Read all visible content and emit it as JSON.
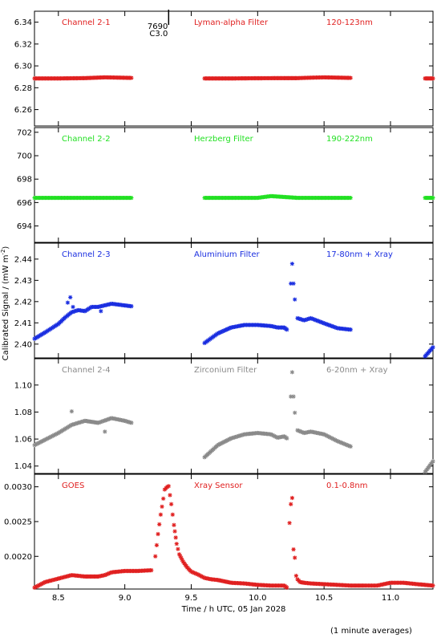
{
  "chart_data": {
    "type": "scatter",
    "x_axis": {
      "label": "Time / h UTC, 05 Jan 2028",
      "range": [
        8.32,
        11.32
      ],
      "ticks": [
        8.5,
        9.0,
        9.5,
        10.0,
        10.5,
        11.0
      ],
      "tick_labels": [
        "8.5",
        "9.0",
        "9.5",
        "10.0",
        "10.5",
        "11.0"
      ]
    },
    "shared_ylabel": "Calibrated Signal / (mW m",
    "shared_ylabel_sup": "-2",
    "shared_ylabel_end": ")",
    "footnote": "(1 minute averages)",
    "panels": [
      {
        "labels": [
          "Channel 2-1",
          "Lyman-alpha Filter",
          "120-123nm"
        ],
        "color": "#e02020",
        "ylim": [
          6.245,
          6.35
        ],
        "yticks": [
          6.26,
          6.28,
          6.3,
          6.32,
          6.34
        ],
        "ytick_labels": [
          "6.26",
          "6.28",
          "6.30",
          "6.32",
          "6.34"
        ],
        "annotation": {
          "x": 9.33,
          "lines": [
            "7690",
            "C3.0"
          ]
        },
        "segments": [
          {
            "x": [
              8.32,
              8.5,
              8.7,
              8.85,
              9.05
            ],
            "y": [
              6.2885,
              6.2885,
              6.2888,
              6.2895,
              6.289
            ]
          },
          {
            "x": [
              9.6,
              9.8,
              10.0,
              10.2,
              10.3,
              10.4,
              10.5,
              10.7
            ],
            "y": [
              6.2885,
              6.2885,
              6.2887,
              6.2888,
              6.2888,
              6.2892,
              6.2895,
              6.289
            ]
          },
          {
            "x": [
              11.26,
              11.32
            ],
            "y": [
              6.2885,
              6.2885
            ]
          }
        ]
      },
      {
        "labels": [
          "Channel 2-2",
          "Herzberg Filter",
          "190-222nm"
        ],
        "color": "#22e022",
        "ylim": [
          692.6,
          702.4
        ],
        "yticks": [
          694,
          696,
          698,
          700,
          702
        ],
        "ytick_labels": [
          "694",
          "696",
          "698",
          "700",
          "702"
        ],
        "segments": [
          {
            "x": [
              8.32,
              8.7,
              9.05
            ],
            "y": [
              696.4,
              696.4,
              696.4
            ]
          },
          {
            "x": [
              9.6,
              10.0,
              10.1,
              10.3,
              10.7
            ],
            "y": [
              696.4,
              696.4,
              696.55,
              696.4,
              696.4
            ]
          },
          {
            "x": [
              11.26,
              11.32
            ],
            "y": [
              696.4,
              696.4
            ]
          }
        ]
      },
      {
        "labels": [
          "Channel 2-3",
          "Aluminium Filter",
          "17-80nm + Xray"
        ],
        "color": "#1a2ee0",
        "ylim": [
          2.3935,
          2.4475
        ],
        "yticks": [
          2.4,
          2.41,
          2.42,
          2.43,
          2.44
        ],
        "ytick_labels": [
          "2.40",
          "2.41",
          "2.42",
          "2.43",
          "2.44"
        ],
        "legend_marker": {
          "x": 10.26,
          "y": 2.4378
        },
        "segments": [
          {
            "x": [
              8.32,
              8.4,
              8.5,
              8.55,
              8.6,
              8.65,
              8.7,
              8.75,
              8.8,
              8.9,
              9.0,
              9.05
            ],
            "y": [
              2.4025,
              2.4055,
              2.4095,
              2.4125,
              2.415,
              2.416,
              2.4155,
              2.4175,
              2.4175,
              2.419,
              2.4182,
              2.4178
            ]
          },
          {
            "x": [
              9.6,
              9.7,
              9.8,
              9.9,
              10.0,
              10.1,
              10.15,
              10.2,
              10.22
            ],
            "y": [
              2.4005,
              2.405,
              2.4078,
              2.409,
              2.409,
              2.4085,
              2.4078,
              2.4078,
              2.4068
            ]
          },
          {
            "x": [
              10.3,
              10.35,
              10.4,
              10.5,
              10.6,
              10.7
            ],
            "y": [
              2.4122,
              2.4112,
              2.4122,
              2.4098,
              2.4075,
              2.4068
            ]
          },
          {
            "x": [
              11.26,
              11.32
            ],
            "y": [
              2.3942,
              2.3985
            ]
          }
        ],
        "outliers": {
          "x": [
            8.57,
            8.59,
            8.61,
            8.82,
            10.25,
            10.27,
            10.28
          ],
          "y": [
            2.4195,
            2.422,
            2.4175,
            2.4155,
            2.4285,
            2.4285,
            2.421
          ]
        }
      },
      {
        "labels": [
          "Channel 2-4",
          "Zirconium Filter",
          "6-20nm + Xray"
        ],
        "color": "#8a8a8a",
        "ylim": [
          1.0345,
          1.1195
        ],
        "yticks": [
          1.04,
          1.06,
          1.08,
          1.1
        ],
        "ytick_labels": [
          "1.04",
          "1.06",
          "1.08",
          "1.10"
        ],
        "legend_marker": {
          "x": 10.26,
          "y": 1.1095
        },
        "segments": [
          {
            "x": [
              8.32,
              8.4,
              8.5,
              8.6,
              8.7,
              8.8,
              8.9,
              9.0,
              9.05
            ],
            "y": [
              1.0555,
              1.0595,
              1.0645,
              1.0705,
              1.0735,
              1.072,
              1.0755,
              1.0735,
              1.072
            ]
          },
          {
            "x": [
              9.6,
              9.7,
              9.8,
              9.9,
              10.0,
              10.1,
              10.15,
              10.2,
              10.22
            ],
            "y": [
              1.0465,
              1.0555,
              1.0605,
              1.0635,
              1.0645,
              1.0635,
              1.061,
              1.062,
              1.0605
            ]
          },
          {
            "x": [
              10.3,
              10.35,
              10.4,
              10.5,
              10.6,
              10.7
            ],
            "y": [
              1.0665,
              1.0645,
              1.0655,
              1.0635,
              1.0585,
              1.0545
            ]
          },
          {
            "x": [
              11.26,
              11.32
            ],
            "y": [
              1.0355,
              1.0435
            ]
          }
        ],
        "outliers": {
          "x": [
            8.6,
            8.85,
            10.25,
            10.27,
            10.28
          ],
          "y": [
            1.0805,
            1.0655,
            1.0915,
            1.0915,
            1.0795
          ]
        }
      },
      {
        "labels": [
          "GOES",
          "Xray Sensor",
          "0.1-0.8nm"
        ],
        "color": "#e02020",
        "ylim": [
          0.00153,
          0.00318
        ],
        "yticks": [
          0.002,
          0.0025,
          0.003
        ],
        "ytick_labels": [
          "0.0020",
          "0.0025",
          "0.0030"
        ],
        "segments": [
          {
            "x": [
              8.32,
              8.4,
              8.5,
              8.6,
              8.7,
              8.8,
              8.85,
              8.9,
              9.0,
              9.1,
              9.2
            ],
            "y": [
              0.00155,
              0.00163,
              0.00168,
              0.00173,
              0.00171,
              0.00171,
              0.00173,
              0.00177,
              0.00179,
              0.00179,
              0.0018
            ]
          },
          {
            "x": [
              9.23,
              9.25,
              9.27,
              9.29,
              9.3,
              9.32,
              9.33,
              9.35,
              9.37,
              9.39,
              9.41,
              9.44,
              9.47,
              9.5,
              9.55,
              9.6,
              9.65,
              9.7,
              9.8,
              9.9,
              10.0,
              10.1,
              10.2,
              10.22
            ],
            "y": [
              0.002,
              0.00232,
              0.0026,
              0.00283,
              0.00296,
              0.003,
              0.00301,
              0.00275,
              0.00245,
              0.00218,
              0.00203,
              0.00192,
              0.00184,
              0.00178,
              0.00174,
              0.00169,
              0.00167,
              0.00166,
              0.00162,
              0.00161,
              0.00159,
              0.00158,
              0.00158,
              0.00155
            ]
          },
          {
            "x": [
              10.24,
              10.25,
              10.26,
              10.27,
              10.28,
              10.29,
              10.3,
              10.32,
              10.35,
              10.4,
              10.5,
              10.6,
              10.7,
              10.8,
              10.9,
              11.0,
              11.1,
              11.2,
              11.32
            ],
            "y": [
              0.00248,
              0.00275,
              0.00284,
              0.0021,
              0.00198,
              0.00172,
              0.00167,
              0.00163,
              0.00162,
              0.00161,
              0.0016,
              0.00159,
              0.00158,
              0.00158,
              0.00158,
              0.00162,
              0.00162,
              0.0016,
              0.00158
            ]
          }
        ]
      }
    ]
  }
}
